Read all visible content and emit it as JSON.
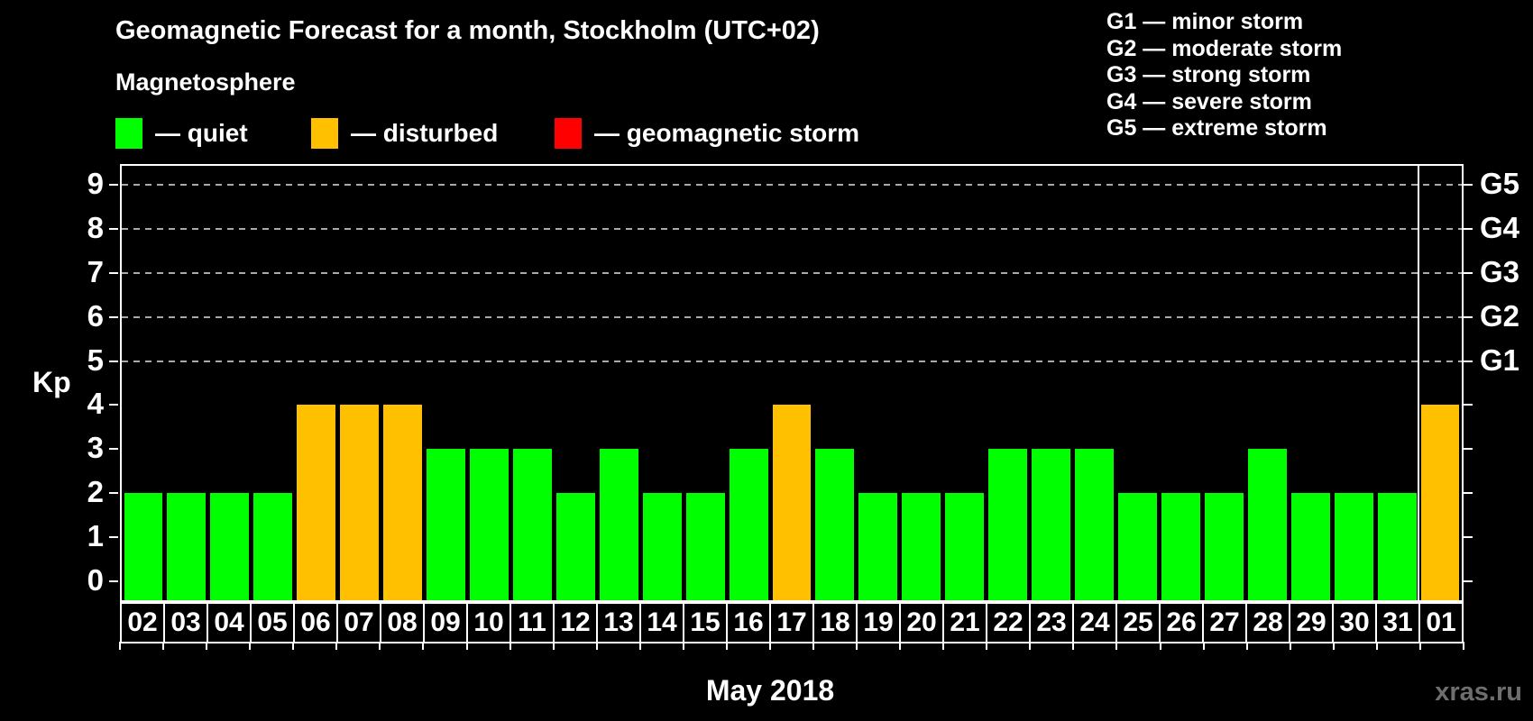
{
  "title": "Geomagnetic Forecast for a month, Stockholm (UTC+02)",
  "subtitle": "Magnetosphere",
  "legend": {
    "items": [
      {
        "name": "quiet",
        "label": "— quiet",
        "color": "#00ff00"
      },
      {
        "name": "disturbed",
        "label": "— disturbed",
        "color": "#ffc000"
      },
      {
        "name": "storm",
        "label": "— geomagnetic storm",
        "color": "#ff0000"
      }
    ]
  },
  "storm_legend": {
    "items": [
      "G1 — minor storm",
      "G2 — moderate storm",
      "G3 — strong storm",
      "G4 — severe storm",
      "G5 — extreme storm"
    ]
  },
  "chart_data": {
    "type": "bar",
    "title": "Geomagnetic Forecast for a month, Stockholm (UTC+02)",
    "xlabel": "May 2018",
    "ylabel": "Kp",
    "ylim": [
      0,
      9
    ],
    "grid": "dashed horizontal at Kp 5-9",
    "categories": [
      "02",
      "03",
      "04",
      "05",
      "06",
      "07",
      "08",
      "09",
      "10",
      "11",
      "12",
      "13",
      "14",
      "15",
      "16",
      "17",
      "18",
      "19",
      "20",
      "21",
      "22",
      "23",
      "24",
      "25",
      "26",
      "27",
      "28",
      "29",
      "30",
      "31",
      "01"
    ],
    "values": [
      2,
      2,
      2,
      2,
      4,
      4,
      4,
      3,
      3,
      3,
      2,
      3,
      2,
      2,
      3,
      4,
      3,
      2,
      2,
      2,
      3,
      3,
      3,
      2,
      2,
      2,
      3,
      2,
      2,
      2,
      4
    ],
    "statuses": [
      "quiet",
      "quiet",
      "quiet",
      "quiet",
      "disturbed",
      "disturbed",
      "disturbed",
      "quiet",
      "quiet",
      "quiet",
      "quiet",
      "quiet",
      "quiet",
      "quiet",
      "quiet",
      "disturbed",
      "quiet",
      "quiet",
      "quiet",
      "quiet",
      "quiet",
      "quiet",
      "quiet",
      "quiet",
      "quiet",
      "quiet",
      "quiet",
      "quiet",
      "quiet",
      "quiet",
      "disturbed"
    ],
    "colors": {
      "quiet": "#00ff00",
      "disturbed": "#ffc000",
      "storm": "#ff0000"
    },
    "kp_ticks": [
      0,
      1,
      2,
      3,
      4,
      5,
      6,
      7,
      8,
      9
    ],
    "grid_levels": [
      5,
      6,
      7,
      8,
      9
    ],
    "g_labels": [
      {
        "kp": 5,
        "label": "G1"
      },
      {
        "kp": 6,
        "label": "G2"
      },
      {
        "kp": 7,
        "label": "G3"
      },
      {
        "kp": 8,
        "label": "G4"
      },
      {
        "kp": 9,
        "label": "G5"
      }
    ],
    "month_separator_before_index": 30
  },
  "footer": {
    "month_label": "May 2018",
    "watermark": "xras.ru"
  }
}
